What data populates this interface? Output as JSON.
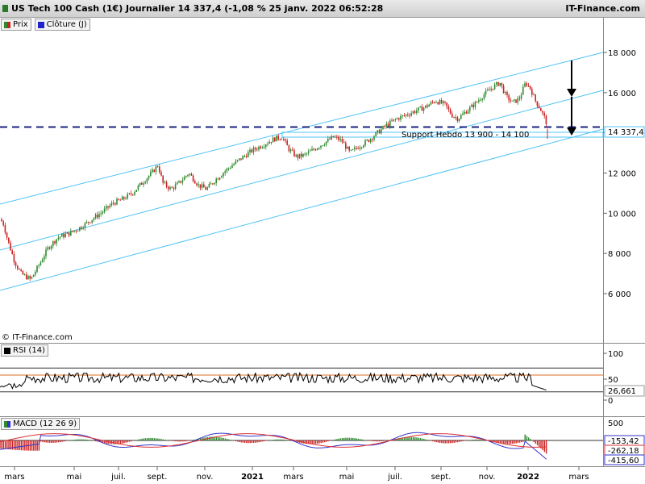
{
  "header": {
    "title": "US Tech 100 Cash (1€) Journalier 14 337,4 (-1,08 % 25 janv. 2022 06:52:28",
    "brand": "IT-Finance.com"
  },
  "legend": [
    {
      "label": "Prix",
      "color": "#2e8b2e"
    },
    {
      "label": "Clôture (J)",
      "color": "#2222cc"
    }
  ],
  "credit": "© IT-Finance.com",
  "colors": {
    "channel": "#4fc3f7",
    "support_line": "#1a237e",
    "candle_up": "#2e8b2e",
    "candle_down": "#cc2222",
    "rsi": "#000000",
    "rsi_mid": "#e07020",
    "macd": "#3333cc",
    "signal": "#dd3333",
    "price_badge_border": "#4fc3f7"
  },
  "chart_data": [
    {
      "type": "candlestick",
      "ylim": [
        5000,
        19000
      ],
      "yticks": [
        6000,
        8000,
        10000,
        12000,
        14000,
        16000,
        18000
      ],
      "ytick_labels": [
        "6 000",
        "8 000",
        "10 000",
        "12 000",
        "14 000",
        "16 000",
        "18 000"
      ],
      "x_labels": [
        "mars",
        "mai",
        "juil.",
        "sept.",
        "nov.",
        "2021",
        "mars",
        "mai",
        "juil.",
        "sept.",
        "nov.",
        "2022",
        "mars"
      ],
      "x_label_bold": [
        false,
        false,
        false,
        false,
        false,
        true,
        false,
        false,
        false,
        false,
        false,
        true,
        false
      ],
      "last_price": 14337.4,
      "last_price_label": "14 337,4",
      "support_label": "Support Hebdo 13 900 - 14 100",
      "support_zone": [
        13900,
        14100
      ],
      "close_line": 14337.4,
      "path": [
        [
          0,
          9700
        ],
        [
          4,
          9500
        ],
        [
          10,
          8600
        ],
        [
          18,
          7600
        ],
        [
          26,
          7000
        ],
        [
          38,
          6700
        ],
        [
          48,
          7400
        ],
        [
          60,
          8300
        ],
        [
          72,
          8800
        ],
        [
          86,
          9000
        ],
        [
          100,
          9300
        ],
        [
          114,
          9700
        ],
        [
          128,
          10100
        ],
        [
          140,
          10500
        ],
        [
          152,
          10700
        ],
        [
          164,
          11000
        ],
        [
          176,
          11500
        ],
        [
          188,
          12000
        ],
        [
          196,
          12400
        ],
        [
          202,
          11500
        ],
        [
          212,
          11200
        ],
        [
          222,
          11500
        ],
        [
          234,
          12000
        ],
        [
          246,
          11400
        ],
        [
          256,
          11200
        ],
        [
          268,
          11700
        ],
        [
          282,
          12200
        ],
        [
          298,
          12700
        ],
        [
          312,
          13100
        ],
        [
          326,
          13400
        ],
        [
          340,
          13700
        ],
        [
          350,
          13800
        ],
        [
          358,
          13200
        ],
        [
          368,
          12800
        ],
        [
          378,
          12900
        ],
        [
          390,
          13200
        ],
        [
          402,
          13500
        ],
        [
          414,
          13800
        ],
        [
          424,
          13600
        ],
        [
          434,
          13000
        ],
        [
          444,
          13300
        ],
        [
          456,
          13600
        ],
        [
          468,
          14000
        ],
        [
          480,
          14400
        ],
        [
          492,
          14700
        ],
        [
          504,
          14900
        ],
        [
          516,
          15100
        ],
        [
          528,
          15300
        ],
        [
          540,
          15600
        ],
        [
          552,
          15400
        ],
        [
          560,
          14900
        ],
        [
          568,
          14700
        ],
        [
          576,
          15000
        ],
        [
          588,
          15400
        ],
        [
          600,
          15900
        ],
        [
          612,
          16300
        ],
        [
          620,
          16500
        ],
        [
          628,
          15800
        ],
        [
          636,
          15500
        ],
        [
          644,
          15700
        ],
        [
          652,
          16500
        ],
        [
          658,
          16200
        ],
        [
          664,
          15600
        ],
        [
          670,
          15200
        ],
        [
          676,
          14700
        ],
        [
          679,
          14337.4
        ]
      ]
    },
    {
      "type": "line",
      "name": "RSI (14)",
      "ylim": [
        0,
        100
      ],
      "yticks": [
        0,
        50,
        100
      ],
      "ytick_labels": [
        "0",
        "50",
        "100"
      ],
      "levels": [
        30,
        50,
        70
      ],
      "last_value": 26.661,
      "last_value_label": "26,661"
    },
    {
      "type": "line",
      "name": "MACD (12 26 9)",
      "ytick_labels": [
        "500"
      ],
      "values_labels": [
        "-153,42",
        "-262,18",
        "-415,60"
      ]
    }
  ]
}
